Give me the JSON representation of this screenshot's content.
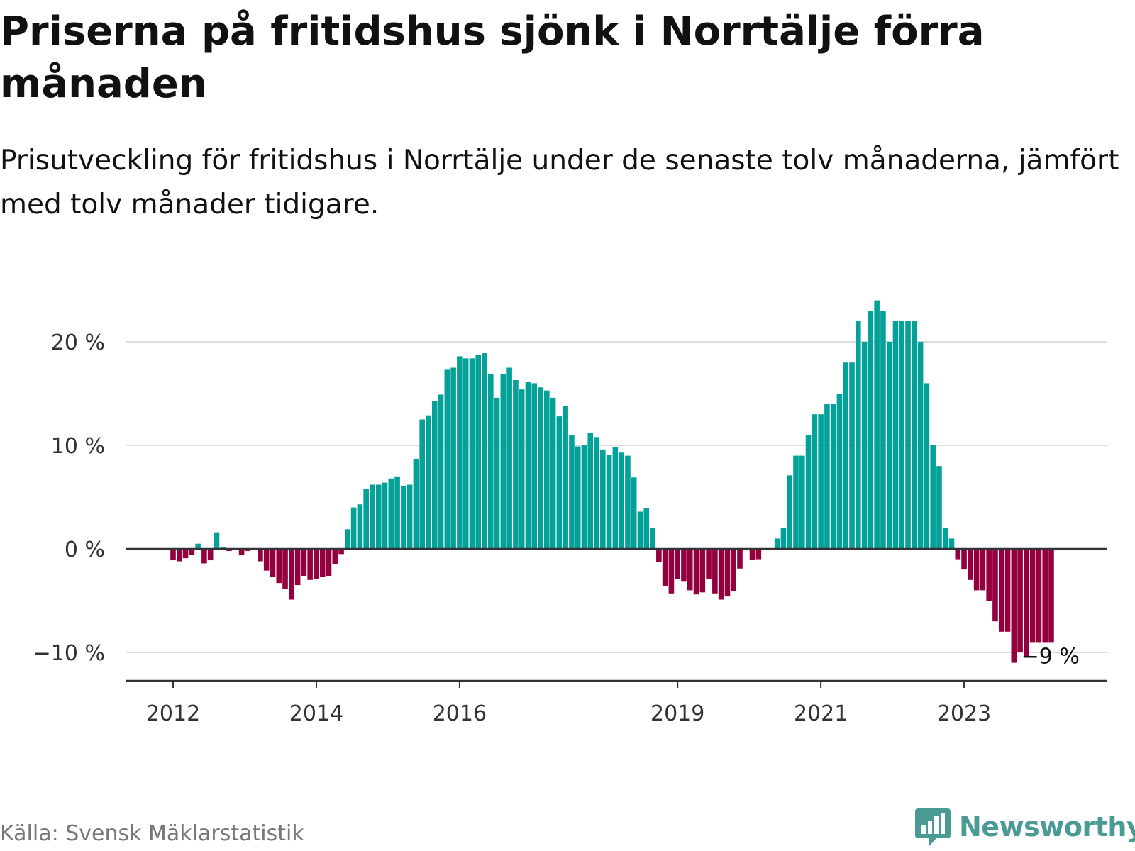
{
  "title": "Priserna på fritidshus sjönk i Norrtälje förra månaden",
  "subtitle": "Prisutveckling för fritidshus i Norrtälje under de senaste tolv månaderna, jämfört med tolv månader tidigare.",
  "source": "Källa: Svensk Mäklarstatistik",
  "brand": {
    "name": "Newsworthy",
    "icon": "newsworthy-logo-icon"
  },
  "colors": {
    "positive": "#04a199",
    "negative": "#94003e",
    "grid": "#dddddd",
    "axis": "#333333",
    "brand": "#4a9b94"
  },
  "chart_data": {
    "type": "bar",
    "title": "Priserna på fritidshus sjönk i Norrtälje förra månaden",
    "xlabel": "",
    "ylabel": "",
    "ylim": [
      -12.5,
      24.5
    ],
    "y_ticks": [
      {
        "value": 20,
        "label": "20 %"
      },
      {
        "value": 10,
        "label": "10 %"
      },
      {
        "value": 0,
        "label": "0 %"
      },
      {
        "value": -10,
        "label": "−10 %"
      }
    ],
    "x_ticks": [
      {
        "index": 7,
        "label": "2012"
      },
      {
        "index": 30,
        "label": "2014"
      },
      {
        "index": 53,
        "label": "2016"
      },
      {
        "index": 88,
        "label": "2019"
      },
      {
        "index": 111,
        "label": "2021"
      },
      {
        "index": 134,
        "label": "2023"
      }
    ],
    "values": [
      null,
      null,
      null,
      null,
      null,
      null,
      null,
      -1.1,
      -1.2,
      -0.9,
      -0.6,
      0.5,
      -1.4,
      -1.1,
      1.6,
      0.2,
      -0.2,
      0,
      -0.6,
      -0.2,
      -0.1,
      -1.2,
      -2.1,
      -2.7,
      -3.3,
      -3.9,
      -4.9,
      -3.5,
      -2.6,
      -3.0,
      -2.9,
      -2.7,
      -2.6,
      -1.5,
      -0.5,
      1.9,
      4.0,
      4.3,
      5.8,
      6.2,
      6.2,
      6.4,
      6.8,
      7.0,
      6.1,
      6.2,
      8.7,
      12.5,
      12.9,
      14.3,
      14.9,
      17.3,
      17.5,
      18.6,
      18.4,
      18.4,
      18.7,
      18.9,
      16.9,
      14.6,
      16.9,
      17.5,
      16.3,
      15.4,
      16.1,
      16.0,
      15.6,
      15.3,
      14.6,
      12.8,
      13.8,
      11.0,
      9.9,
      10.0,
      11.2,
      10.8,
      9.6,
      9.1,
      9.8,
      9.3,
      9.0,
      6.9,
      3.6,
      3.9,
      2.0,
      -1.3,
      -3.6,
      -4.3,
      -2.9,
      -3.1,
      -4.0,
      -4.4,
      -4.2,
      -2.9,
      -4.3,
      -4.9,
      -4.6,
      -4.1,
      -1.9,
      null,
      -1.1,
      -1.0,
      null,
      null,
      1.0,
      2.0,
      7.1,
      9.0,
      9.0,
      11.0,
      13.0,
      13.0,
      14.0,
      14.0,
      15.0,
      18.0,
      18.0,
      22.0,
      20.0,
      23.0,
      24.0,
      23.0,
      20.0,
      22.0,
      22.0,
      22.0,
      22.0,
      20.0,
      16.0,
      10.0,
      8.0,
      2.0,
      1.0,
      -1.0,
      -2.0,
      -3.0,
      -4.0,
      -4.0,
      -5.0,
      -7.0,
      -8.0,
      -8.0,
      -11.0,
      -10.0,
      -10.5,
      -9.0,
      -9.0,
      -9.0,
      -9.0
    ],
    "annotations": [
      {
        "index": 145,
        "label": "−9 %"
      }
    ]
  }
}
